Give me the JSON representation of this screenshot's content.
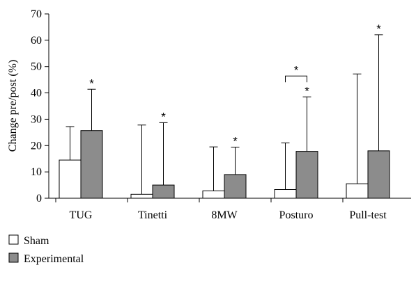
{
  "chart_data": {
    "type": "bar",
    "title": "",
    "xlabel": "",
    "ylabel": "Change pre/post (%)",
    "ylim": [
      0,
      70
    ],
    "yticks": [
      0,
      10,
      20,
      30,
      40,
      50,
      60,
      70
    ],
    "grid": false,
    "legend_position": "bottom-left",
    "categories": [
      "TUG",
      "Tinetti",
      "8MW",
      "Posturo",
      "Pull-test"
    ],
    "series": [
      {
        "name": "Sham",
        "color": "#ffffff",
        "values": [
          14.5,
          1.5,
          2.8,
          3.3,
          5.5
        ],
        "error_upper": [
          27.2,
          27.8,
          19.5,
          21.0,
          47.2
        ]
      },
      {
        "name": "Experimental",
        "color": "#8c8c8c",
        "values": [
          25.7,
          5.0,
          9.0,
          17.8,
          18.0
        ],
        "error_upper": [
          41.4,
          28.7,
          19.4,
          38.5,
          62.1
        ]
      }
    ],
    "significance": {
      "symbol": "*",
      "experimental_marked": [
        true,
        true,
        true,
        true,
        true
      ],
      "bracket_between_groups": [
        false,
        false,
        false,
        true,
        false
      ]
    }
  }
}
